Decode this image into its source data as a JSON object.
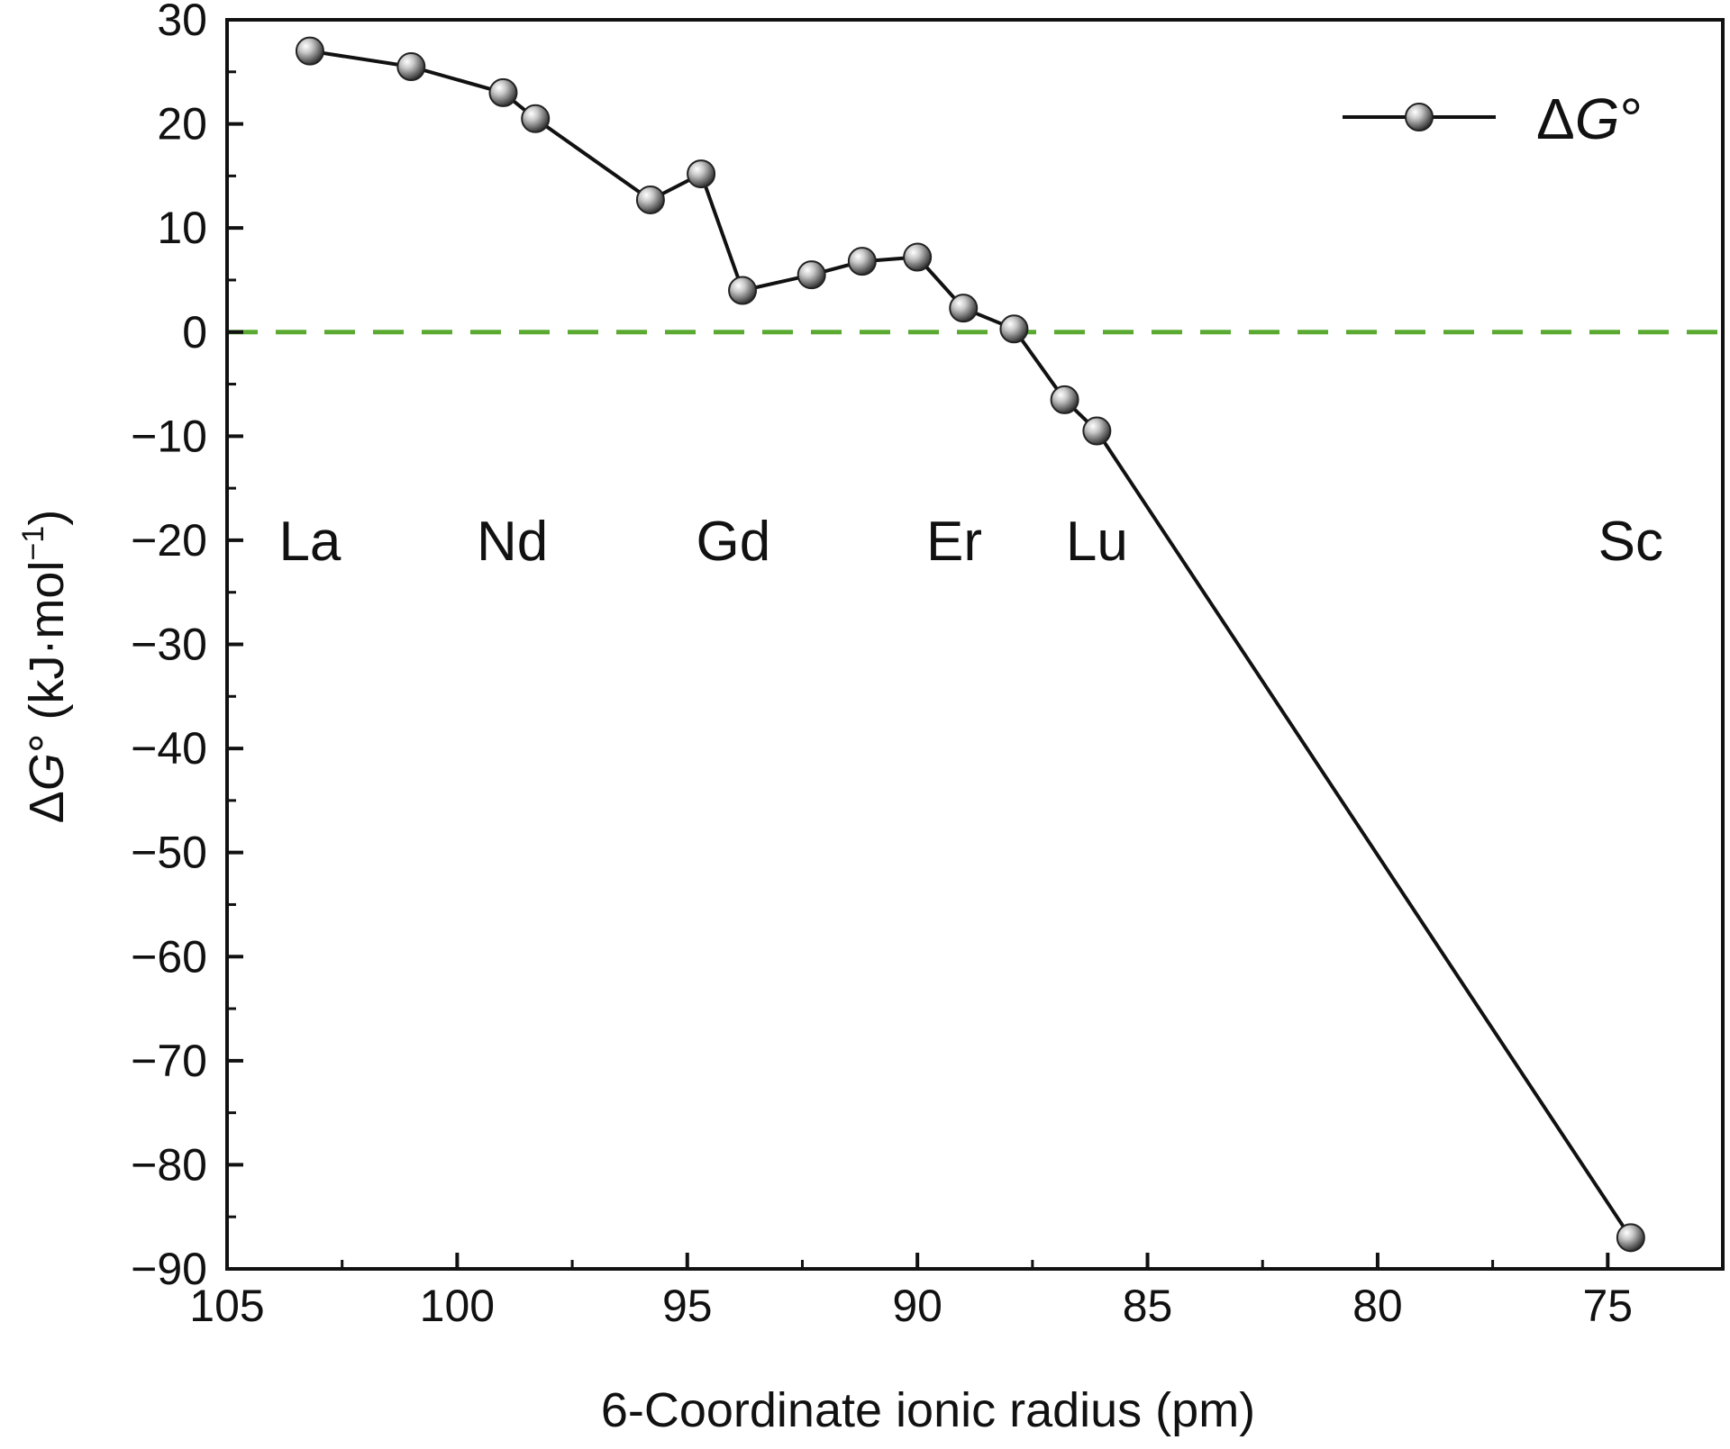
{
  "chart_data": {
    "type": "line",
    "xlabel": "6-Coordinate ionic radius (pm)",
    "ylabel_parts": {
      "pre": "Δ",
      "italic": "G",
      "post": "° (kJ·mol",
      "sup": "−1",
      "close": ")"
    },
    "xlim": [
      105,
      72.5
    ],
    "ylim": [
      -90,
      30
    ],
    "x_ticks": [
      105,
      100,
      95,
      90,
      85,
      80,
      75
    ],
    "y_ticks": [
      30,
      20,
      10,
      0,
      -10,
      -20,
      -30,
      -40,
      -50,
      -60,
      -70,
      -80,
      -90
    ],
    "y_tick_labels": [
      "30",
      "20",
      "10",
      "0",
      "−10",
      "−20",
      "−30",
      "−40",
      "−50",
      "−60",
      "−70",
      "−80",
      "−90"
    ],
    "grid": false,
    "legend": {
      "placement": "top-right",
      "pre": "Δ",
      "italic": "G",
      "post": "°"
    },
    "series": [
      {
        "x": [
          103.2,
          101.0,
          99.0,
          98.3,
          95.8,
          94.7,
          93.8,
          92.3,
          91.2,
          90.0,
          89.0,
          87.9,
          86.8,
          86.1,
          74.5
        ],
        "y": [
          27.0,
          25.5,
          23.0,
          20.5,
          12.7,
          15.2,
          4.0,
          5.5,
          6.8,
          7.2,
          2.3,
          0.3,
          -6.5,
          -9.5,
          -87.0
        ]
      }
    ],
    "reference_line": {
      "y": 0,
      "color": "#5aaa32",
      "style": "dashed"
    },
    "element_labels": [
      {
        "text": "La",
        "x": 103.2,
        "y": -20
      },
      {
        "text": "Nd",
        "x": 98.8,
        "y": -20
      },
      {
        "text": "Gd",
        "x": 94.0,
        "y": -20
      },
      {
        "text": "Er",
        "x": 89.2,
        "y": -20
      },
      {
        "text": "Lu",
        "x": 86.1,
        "y": -20
      },
      {
        "text": "Sc",
        "x": 74.5,
        "y": -20
      }
    ],
    "colors": {
      "line": "#111111",
      "marker_light": "#f4f4f4",
      "marker_dark": "#3a3a3a",
      "axis": "#111111"
    }
  }
}
